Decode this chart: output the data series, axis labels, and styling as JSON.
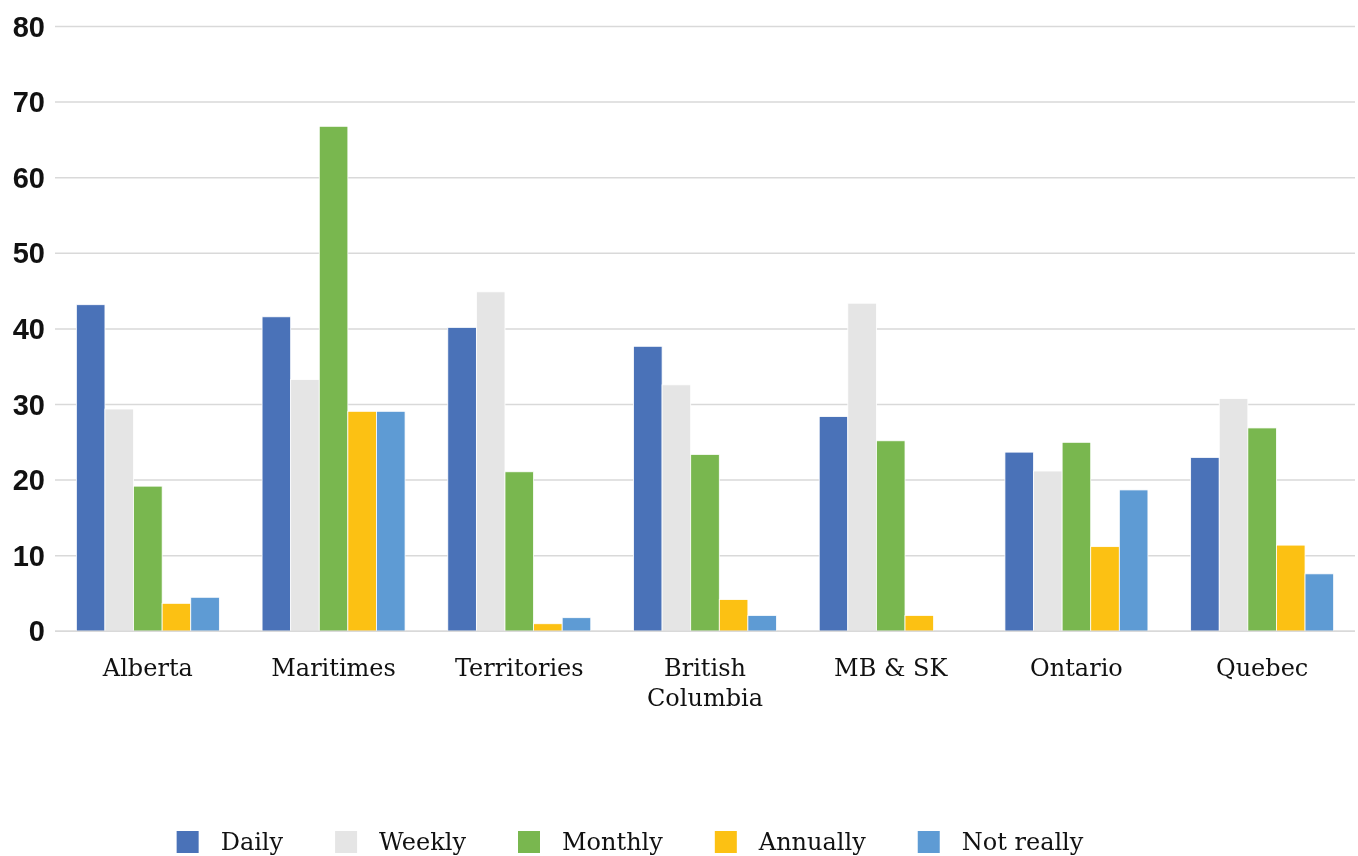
{
  "chart_data": {
    "type": "bar",
    "categories": [
      "Alberta",
      "Maritimes",
      "Territories",
      "British Columbia",
      "MB & SK",
      "Ontario",
      "Quebec"
    ],
    "series": [
      {
        "name": "Daily",
        "color": "#4a72b8",
        "values": [
          43.2,
          41.6,
          40.2,
          37.7,
          28.4,
          23.7,
          23.0
        ]
      },
      {
        "name": "Weekly",
        "color": "#e5e5e5",
        "values": [
          29.4,
          33.3,
          44.9,
          32.6,
          43.4,
          21.2,
          30.8
        ]
      },
      {
        "name": "Monthly",
        "color": "#79b74f",
        "values": [
          19.2,
          66.8,
          21.1,
          23.4,
          25.2,
          25.0,
          26.9
        ]
      },
      {
        "name": "Annually",
        "color": "#fcc113",
        "values": [
          3.7,
          29.1,
          1.0,
          4.2,
          2.1,
          11.2,
          11.4
        ]
      },
      {
        "name": "Not really",
        "color": "#5e9bd4",
        "values": [
          4.5,
          29.1,
          1.8,
          2.1,
          null,
          18.7,
          7.6
        ]
      }
    ],
    "ylim": [
      0,
      80
    ],
    "yticks": [
      0,
      10,
      20,
      30,
      40,
      50,
      60,
      70,
      80
    ],
    "grid": "y",
    "legend": "bottom"
  }
}
